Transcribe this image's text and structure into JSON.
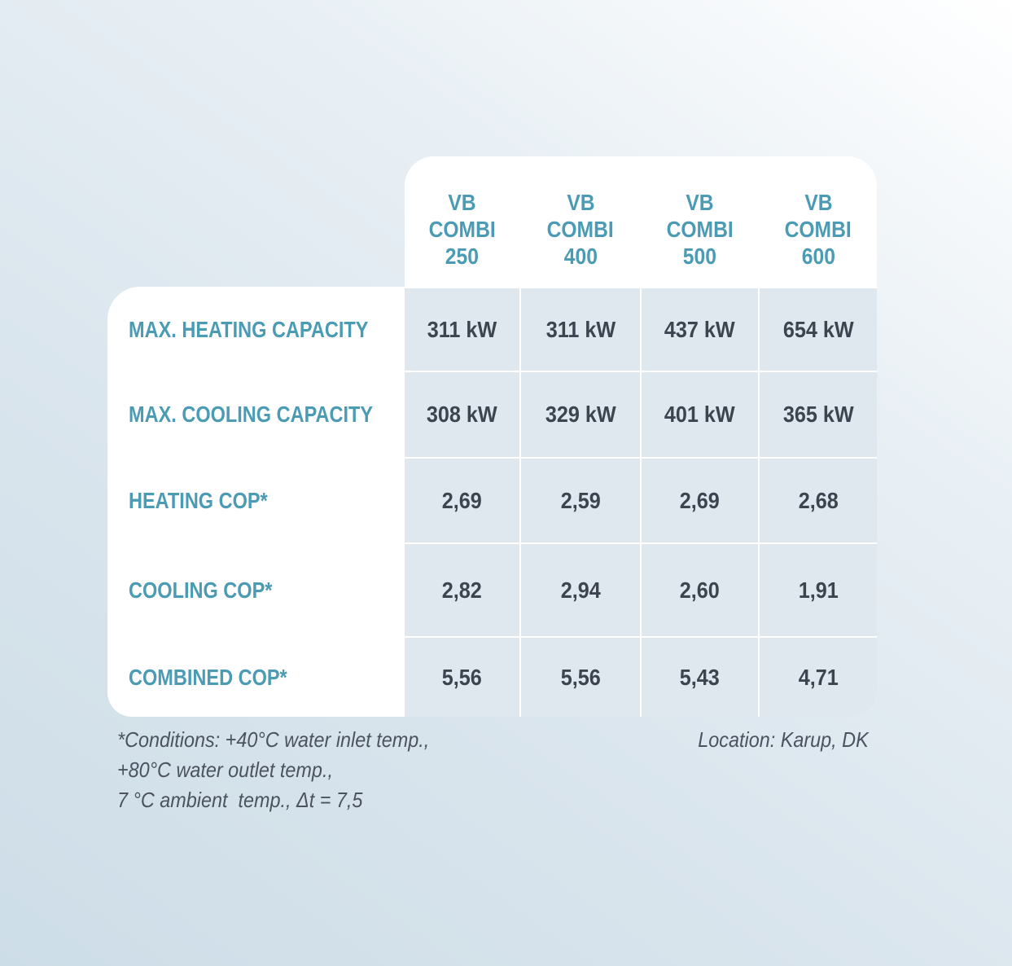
{
  "columns": [
    {
      "line1": "VB",
      "line2": "COMBI",
      "line3": "250"
    },
    {
      "line1": "VB",
      "line2": "COMBI",
      "line3": "400"
    },
    {
      "line1": "VB",
      "line2": "COMBI",
      "line3": "500"
    },
    {
      "line1": "VB",
      "line2": "COMBI",
      "line3": "600"
    }
  ],
  "rows": [
    {
      "label": "MAX. HEATING CAPACITY",
      "values": [
        "311 kW",
        "311 kW",
        "437 kW",
        "654 kW"
      ]
    },
    {
      "label": "MAX. COOLING CAPACITY",
      "values": [
        "308 kW",
        "329 kW",
        "401 kW",
        "365 kW"
      ]
    },
    {
      "label": "HEATING COP*",
      "values": [
        "2,69",
        "2,59",
        "2,69",
        "2,68"
      ]
    },
    {
      "label": "COOLING COP*",
      "values": [
        "2,82",
        "2,94",
        "2,60",
        "1,91"
      ]
    },
    {
      "label": "COMBINED COP*",
      "values": [
        "5,56",
        "5,56",
        "5,43",
        "4,71"
      ]
    }
  ],
  "footnote": {
    "lines": [
      "*Conditions: +40°C water inlet temp.,",
      "+80°C water outlet temp.,",
      "7 °C ambient  temp., Δt = 7,5"
    ],
    "location": "Location: Karup, DK"
  },
  "colors": {
    "accent": "#4a9bb3",
    "value": "#3d4450",
    "cell": "#dfe8ef"
  }
}
